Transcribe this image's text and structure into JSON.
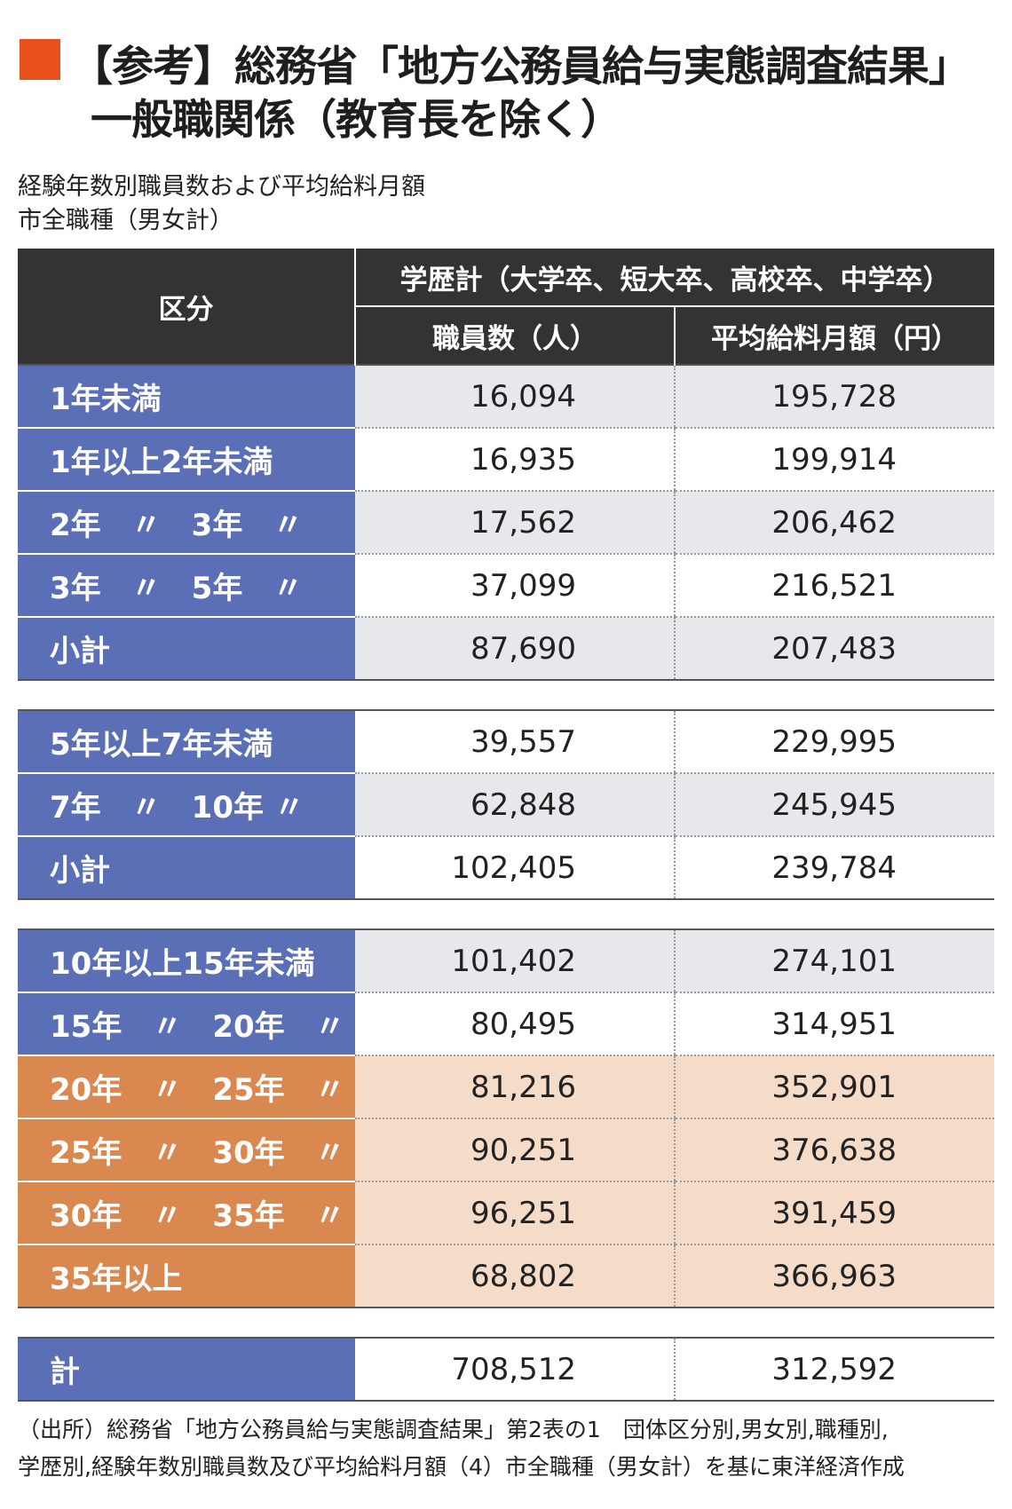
{
  "heading": {
    "line1": "【参考】総務省「地方公務員給与実態調査結果」",
    "line2": "一般職関係（教育長を除く）"
  },
  "subtitle": {
    "line1": "経験年数別職員数および平均給料月額",
    "line2": "市全職種（男女計）"
  },
  "table": {
    "header": {
      "category": "区分",
      "group": "学歴計（大学卒、短大卒、高校卒、中学卒）",
      "col_count": "職員数（人）",
      "col_salary": "平均給料月額（円）"
    },
    "sections": [
      {
        "rows": [
          {
            "label": "1年未満",
            "count": "16,094",
            "salary": "195,728"
          },
          {
            "label": "1年以上2年未満",
            "count": "16,935",
            "salary": "199,914"
          },
          {
            "label": "2年　〃　3年　〃",
            "count": "17,562",
            "salary": "206,462"
          },
          {
            "label": "3年　〃　5年　〃",
            "count": "37,099",
            "salary": "216,521"
          },
          {
            "label": "小計",
            "count": "87,690",
            "salary": "207,483"
          }
        ]
      },
      {
        "rows": [
          {
            "label": "5年以上7年未満",
            "count": "39,557",
            "salary": "229,995"
          },
          {
            "label": "7年　〃　10年 〃",
            "count": "62,848",
            "salary": "245,945"
          },
          {
            "label": "小計",
            "count": "102,405",
            "salary": "239,784"
          }
        ]
      },
      {
        "rows": [
          {
            "label": "10年以上15年未満",
            "count": "101,402",
            "salary": "274,101"
          },
          {
            "label": "15年　〃　20年　〃",
            "count": "80,495",
            "salary": "314,951"
          },
          {
            "label": "20年　〃　25年　〃",
            "count": "81,216",
            "salary": "352,901"
          },
          {
            "label": "25年　〃　30年　〃",
            "count": "90,251",
            "salary": "376,638"
          },
          {
            "label": "30年　〃　35年　〃",
            "count": "96,251",
            "salary": "391,459"
          },
          {
            "label": "35年以上",
            "count": "68,802",
            "salary": "366,963"
          }
        ]
      },
      {
        "rows": [
          {
            "label": "計",
            "count": "708,512",
            "salary": "312,592"
          }
        ]
      }
    ]
  },
  "source": {
    "line1": "（出所）総務省「地方公務員給与実態調査結果」第2表の1　団体区分別,男女別,職種別,",
    "line2": "学歴別,経験年数別職員数及び平均給料月額（4）市全職種（男女計）を基に東洋経済作成"
  },
  "colors": {
    "accent_square": "#e8501e",
    "header_bg": "#333333",
    "label_blue": "#5a6fb6",
    "label_orange": "#d98850",
    "cell_gray": "#e6e8ec",
    "cell_peach": "#f5dcc8"
  }
}
